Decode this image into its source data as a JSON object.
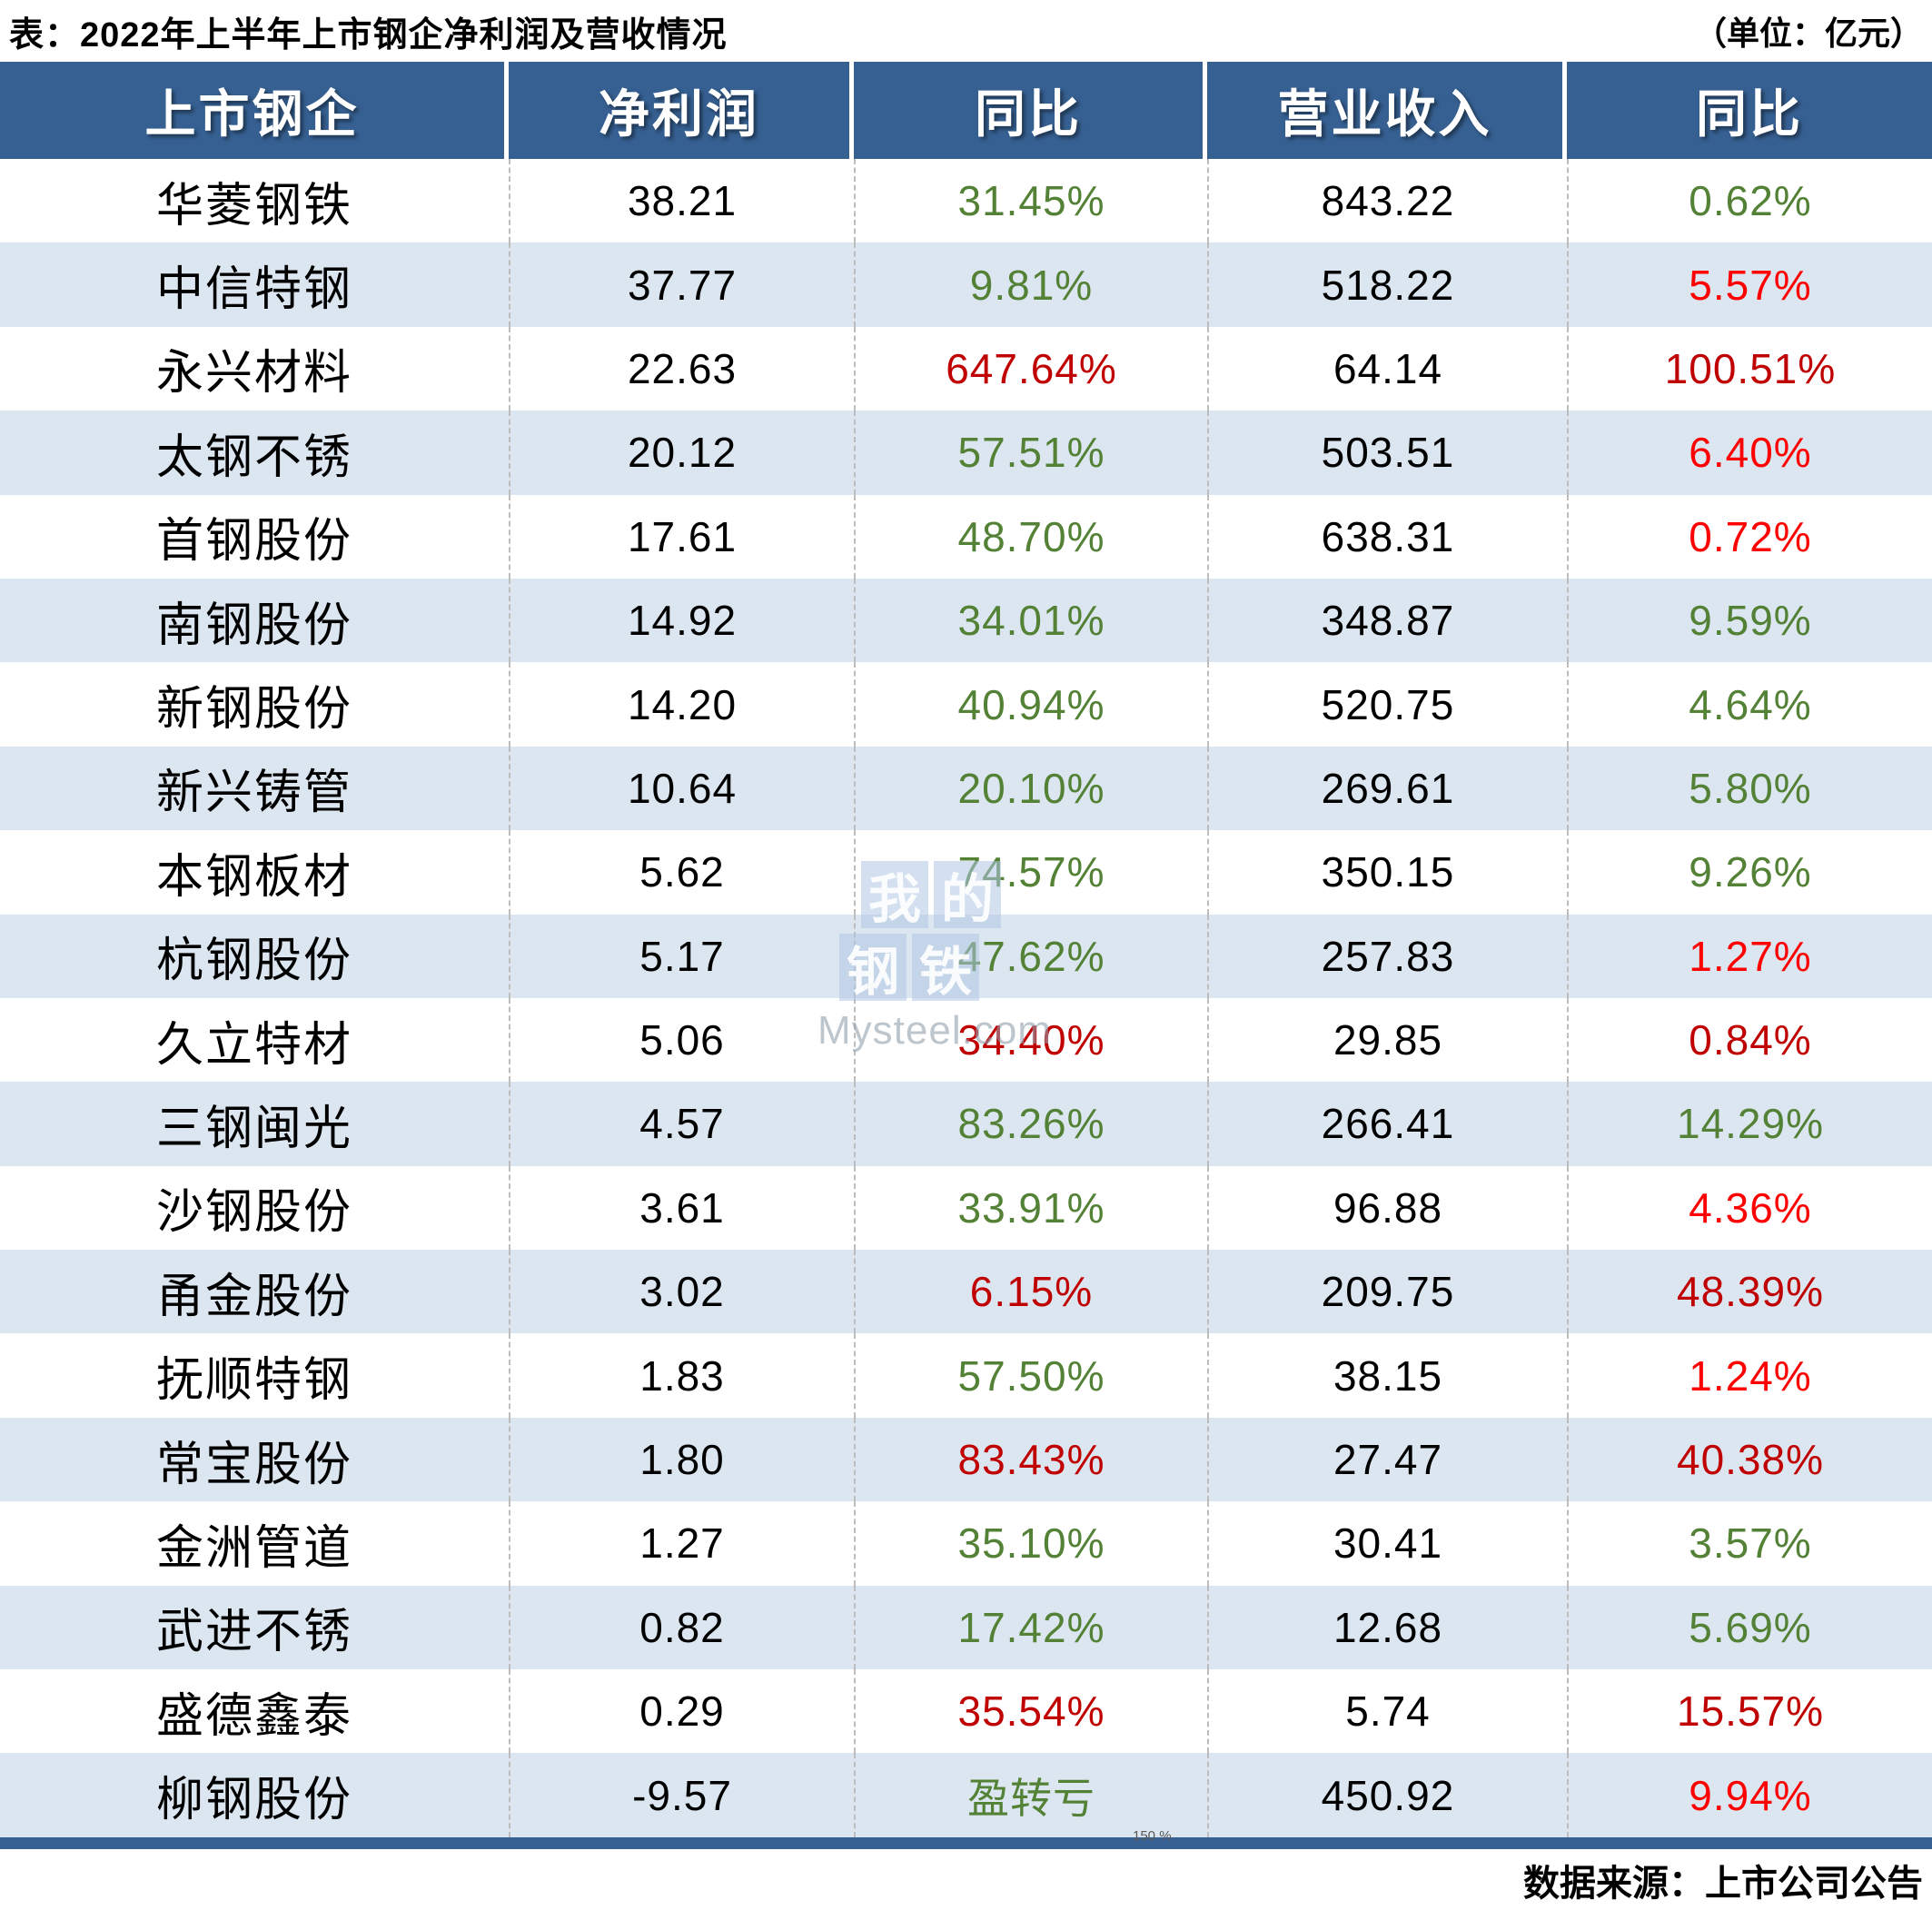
{
  "title": "表：2022年上半年上市钢企净利润及营收情况",
  "unit_note": "（单位：亿元）",
  "source_note": "数据来源：上市公司公告",
  "artifact_text": "150 %",
  "colors": {
    "header_bg": "#366092",
    "row_alt_bg": "#dce6f1",
    "green": "#538135",
    "red": "#c00000",
    "red_bright": "#ff0000",
    "bottom_bar": "#366092"
  },
  "watermark": {
    "chars": [
      "我",
      "的",
      "钢",
      "铁"
    ],
    "url": "Mysteel.com"
  },
  "table": {
    "columns": [
      "上市钢企",
      "净利润",
      "同比",
      "营业收入",
      "同比"
    ],
    "rows": [
      {
        "company": "华菱钢铁",
        "net_profit": "38.21",
        "np_yoy": "31.45%",
        "np_yoy_color": "green",
        "revenue": "843.22",
        "rev_yoy": "0.62%",
        "rev_yoy_color": "green"
      },
      {
        "company": "中信特钢",
        "net_profit": "37.77",
        "np_yoy": "9.81%",
        "np_yoy_color": "green",
        "revenue": "518.22",
        "rev_yoy": "5.57%",
        "rev_yoy_color": "red_bright"
      },
      {
        "company": "永兴材料",
        "net_profit": "22.63",
        "np_yoy": "647.64%",
        "np_yoy_color": "red",
        "revenue": "64.14",
        "rev_yoy": "100.51%",
        "rev_yoy_color": "red"
      },
      {
        "company": "太钢不锈",
        "net_profit": "20.12",
        "np_yoy": "57.51%",
        "np_yoy_color": "green",
        "revenue": "503.51",
        "rev_yoy": "6.40%",
        "rev_yoy_color": "red_bright"
      },
      {
        "company": "首钢股份",
        "net_profit": "17.61",
        "np_yoy": "48.70%",
        "np_yoy_color": "green",
        "revenue": "638.31",
        "rev_yoy": "0.72%",
        "rev_yoy_color": "red_bright"
      },
      {
        "company": "南钢股份",
        "net_profit": "14.92",
        "np_yoy": "34.01%",
        "np_yoy_color": "green",
        "revenue": "348.87",
        "rev_yoy": "9.59%",
        "rev_yoy_color": "green"
      },
      {
        "company": "新钢股份",
        "net_profit": "14.20",
        "np_yoy": "40.94%",
        "np_yoy_color": "green",
        "revenue": "520.75",
        "rev_yoy": "4.64%",
        "rev_yoy_color": "green"
      },
      {
        "company": "新兴铸管",
        "net_profit": "10.64",
        "np_yoy": "20.10%",
        "np_yoy_color": "green",
        "revenue": "269.61",
        "rev_yoy": "5.80%",
        "rev_yoy_color": "green"
      },
      {
        "company": "本钢板材",
        "net_profit": "5.62",
        "np_yoy": "74.57%",
        "np_yoy_color": "green",
        "revenue": "350.15",
        "rev_yoy": "9.26%",
        "rev_yoy_color": "green"
      },
      {
        "company": "杭钢股份",
        "net_profit": "5.17",
        "np_yoy": "47.62%",
        "np_yoy_color": "green",
        "revenue": "257.83",
        "rev_yoy": "1.27%",
        "rev_yoy_color": "red_bright"
      },
      {
        "company": "久立特材",
        "net_profit": "5.06",
        "np_yoy": "34.40%",
        "np_yoy_color": "red",
        "revenue": "29.85",
        "rev_yoy": "0.84%",
        "rev_yoy_color": "red"
      },
      {
        "company": "三钢闽光",
        "net_profit": "4.57",
        "np_yoy": "83.26%",
        "np_yoy_color": "green",
        "revenue": "266.41",
        "rev_yoy": "14.29%",
        "rev_yoy_color": "green"
      },
      {
        "company": "沙钢股份",
        "net_profit": "3.61",
        "np_yoy": "33.91%",
        "np_yoy_color": "green",
        "revenue": "96.88",
        "rev_yoy": "4.36%",
        "rev_yoy_color": "red_bright"
      },
      {
        "company": "甬金股份",
        "net_profit": "3.02",
        "np_yoy": "6.15%",
        "np_yoy_color": "red",
        "revenue": "209.75",
        "rev_yoy": "48.39%",
        "rev_yoy_color": "red"
      },
      {
        "company": "抚顺特钢",
        "net_profit": "1.83",
        "np_yoy": "57.50%",
        "np_yoy_color": "green",
        "revenue": "38.15",
        "rev_yoy": "1.24%",
        "rev_yoy_color": "red_bright"
      },
      {
        "company": "常宝股份",
        "net_profit": "1.80",
        "np_yoy": "83.43%",
        "np_yoy_color": "red",
        "revenue": "27.47",
        "rev_yoy": "40.38%",
        "rev_yoy_color": "red"
      },
      {
        "company": "金洲管道",
        "net_profit": "1.27",
        "np_yoy": "35.10%",
        "np_yoy_color": "green",
        "revenue": "30.41",
        "rev_yoy": "3.57%",
        "rev_yoy_color": "green"
      },
      {
        "company": "武进不锈",
        "net_profit": "0.82",
        "np_yoy": "17.42%",
        "np_yoy_color": "green",
        "revenue": "12.68",
        "rev_yoy": "5.69%",
        "rev_yoy_color": "green"
      },
      {
        "company": "盛德鑫泰",
        "net_profit": "0.29",
        "np_yoy": "35.54%",
        "np_yoy_color": "red",
        "revenue": "5.74",
        "rev_yoy": "15.57%",
        "rev_yoy_color": "red"
      },
      {
        "company": "柳钢股份",
        "net_profit": "-9.57",
        "np_yoy": "盈转亏",
        "np_yoy_color": "green",
        "revenue": "450.92",
        "rev_yoy": "9.94%",
        "rev_yoy_color": "red_bright"
      }
    ]
  },
  "chart_data": {
    "type": "table",
    "title": "表：2022年上半年上市钢企净利润及营收情况",
    "unit": "亿元",
    "columns": [
      "上市钢企",
      "净利润",
      "同比",
      "营业收入",
      "同比"
    ],
    "rows": [
      [
        "华菱钢铁",
        38.21,
        "31.45%",
        843.22,
        "0.62%"
      ],
      [
        "中信特钢",
        37.77,
        "9.81%",
        518.22,
        "5.57%"
      ],
      [
        "永兴材料",
        22.63,
        "647.64%",
        64.14,
        "100.51%"
      ],
      [
        "太钢不锈",
        20.12,
        "57.51%",
        503.51,
        "6.40%"
      ],
      [
        "首钢股份",
        17.61,
        "48.70%",
        638.31,
        "0.72%"
      ],
      [
        "南钢股份",
        14.92,
        "34.01%",
        348.87,
        "9.59%"
      ],
      [
        "新钢股份",
        14.2,
        "40.94%",
        520.75,
        "4.64%"
      ],
      [
        "新兴铸管",
        10.64,
        "20.10%",
        269.61,
        "5.80%"
      ],
      [
        "本钢板材",
        5.62,
        "74.57%",
        350.15,
        "9.26%"
      ],
      [
        "杭钢股份",
        5.17,
        "47.62%",
        257.83,
        "1.27%"
      ],
      [
        "久立特材",
        5.06,
        "34.40%",
        29.85,
        "0.84%"
      ],
      [
        "三钢闽光",
        4.57,
        "83.26%",
        266.41,
        "14.29%"
      ],
      [
        "沙钢股份",
        3.61,
        "33.91%",
        96.88,
        "4.36%"
      ],
      [
        "甬金股份",
        3.02,
        "6.15%",
        209.75,
        "48.39%"
      ],
      [
        "抚顺特钢",
        1.83,
        "57.50%",
        38.15,
        "1.24%"
      ],
      [
        "常宝股份",
        1.8,
        "83.43%",
        27.47,
        "40.38%"
      ],
      [
        "金洲管道",
        1.27,
        "35.10%",
        30.41,
        "3.57%"
      ],
      [
        "武进不锈",
        0.82,
        "17.42%",
        12.68,
        "5.69%"
      ],
      [
        "盛德鑫泰",
        0.29,
        "35.54%",
        5.74,
        "15.57%"
      ],
      [
        "柳钢股份",
        -9.57,
        "盈转亏",
        450.92,
        "9.94%"
      ]
    ],
    "source": "数据来源：上市公司公告"
  }
}
